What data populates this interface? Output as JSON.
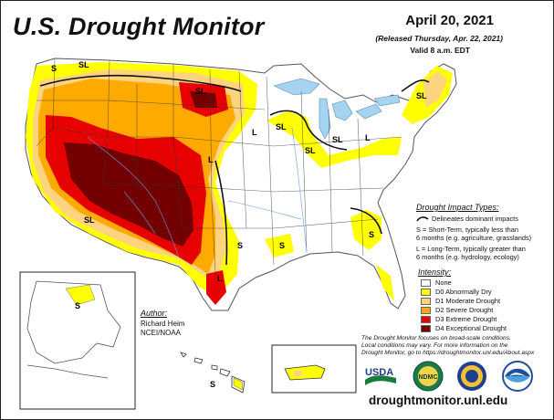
{
  "header": {
    "title": "U.S. Drought Monitor",
    "date": "April 20, 2021",
    "released": "(Released Thursday, Apr. 22, 2021)",
    "valid": "Valid 8 a.m. EDT"
  },
  "impact": {
    "heading": "Drought Impact Types:",
    "delineates": "Delineates dominant impacts",
    "s_line1": "S = Short-Term, typically less than",
    "s_line2": "6 months (e.g. agriculture, grasslands)",
    "l_line1": "L = Long-Term, typically greater than",
    "l_line2": "6 months (e.g. hydrology, ecology)"
  },
  "intensity": {
    "heading": "Intensity:",
    "levels": [
      {
        "label": "None",
        "color": "#ffffff"
      },
      {
        "label": "D0 Abnormally Dry",
        "color": "#ffff00"
      },
      {
        "label": "D1 Moderate Drought",
        "color": "#fcd37f"
      },
      {
        "label": "D2 Severe Drought",
        "color": "#ffaa00"
      },
      {
        "label": "D3 Extreme Drought",
        "color": "#e60000"
      },
      {
        "label": "D4 Exceptional Drought",
        "color": "#730000"
      }
    ]
  },
  "author": {
    "heading": "Author:",
    "name": "Richard Heim",
    "org": "NCEI/NOAA"
  },
  "footnote": {
    "line1": "The Drought Monitor focuses on broad-scale conditions.",
    "line2": "Local conditions may vary. For more information on the",
    "line3": "Drought Monitor, go to https://droughtmonitor.unl.edu/About.aspx"
  },
  "map_labels": {
    "s": "S",
    "l": "L",
    "sl": "SL"
  },
  "logos": {
    "usda": "USDA",
    "ndmc": "NDMC"
  },
  "url": "droughtmonitor.unl.edu"
}
